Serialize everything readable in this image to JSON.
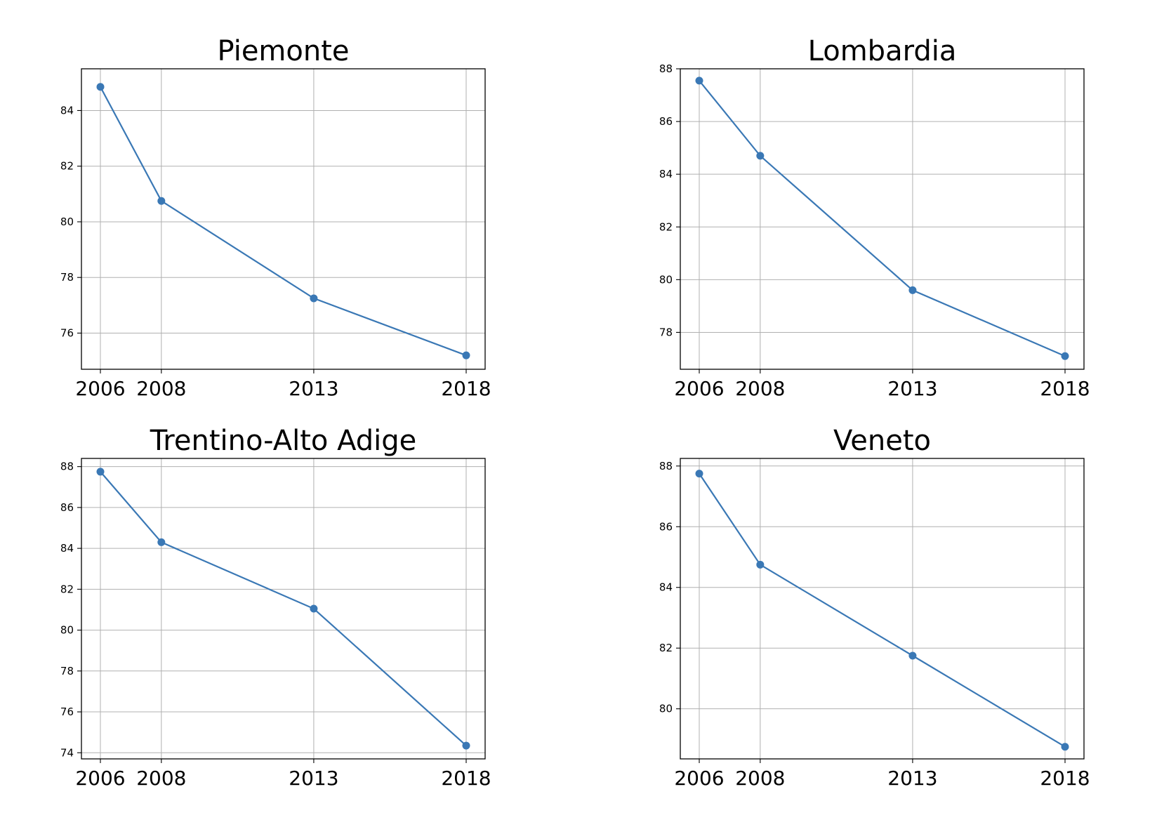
{
  "chart_data": [
    {
      "type": "line",
      "title": "Piemonte",
      "xlabel": "",
      "ylabel": "",
      "x": [
        2006,
        2008,
        2013,
        2018
      ],
      "xticks": [
        "2006",
        "2008",
        "2013",
        "2018"
      ],
      "yticks": [
        76,
        78,
        80,
        82,
        84
      ],
      "ylim": [
        74.7,
        85.5
      ],
      "grid": true,
      "color": "#3a78b5",
      "series": [
        {
          "values": [
            84.85,
            80.75,
            77.25,
            75.2
          ]
        }
      ]
    },
    {
      "type": "line",
      "title": "Lombardia",
      "xlabel": "",
      "ylabel": "",
      "x": [
        2006,
        2008,
        2013,
        2018
      ],
      "xticks": [
        "2006",
        "2008",
        "2013",
        "2018"
      ],
      "yticks": [
        78,
        80,
        82,
        84,
        86,
        88
      ],
      "ylim": [
        76.6,
        88.0
      ],
      "grid": true,
      "color": "#3a78b5",
      "series": [
        {
          "values": [
            87.55,
            84.7,
            79.6,
            77.1
          ]
        }
      ]
    },
    {
      "type": "line",
      "title": "Trentino-Alto Adige",
      "xlabel": "",
      "ylabel": "",
      "x": [
        2006,
        2008,
        2013,
        2018
      ],
      "xticks": [
        "2006",
        "2008",
        "2013",
        "2018"
      ],
      "yticks": [
        74,
        76,
        78,
        80,
        82,
        84,
        86,
        88
      ],
      "ylim": [
        73.7,
        88.4
      ],
      "grid": true,
      "color": "#3a78b5",
      "series": [
        {
          "values": [
            87.75,
            84.3,
            81.05,
            74.35
          ]
        }
      ]
    },
    {
      "type": "line",
      "title": "Veneto",
      "xlabel": "",
      "ylabel": "",
      "x": [
        2006,
        2008,
        2013,
        2018
      ],
      "xticks": [
        "2006",
        "2008",
        "2013",
        "2018"
      ],
      "yticks": [
        80,
        82,
        84,
        86,
        88
      ],
      "ylim": [
        78.35,
        88.25
      ],
      "grid": true,
      "color": "#3a78b5",
      "series": [
        {
          "values": [
            87.75,
            84.75,
            81.75,
            78.75
          ]
        }
      ]
    }
  ]
}
